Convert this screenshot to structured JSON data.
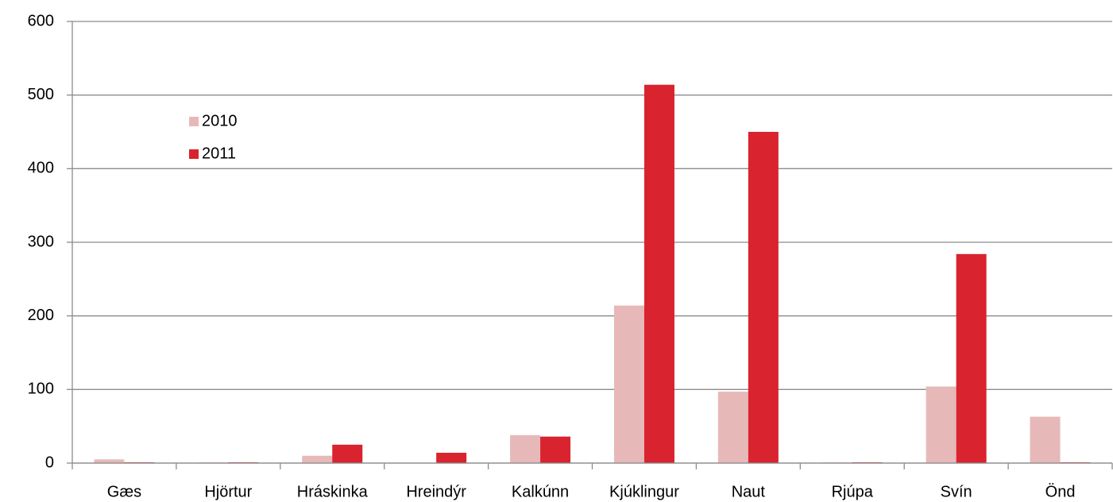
{
  "chart_data": {
    "type": "bar",
    "categories": [
      "Gæs",
      "Hjörtur",
      "Hráskinka",
      "Hreindýr",
      "Kalkúnn",
      "Kjúklingur",
      "Naut",
      "Rjúpa",
      "Svín",
      "Önd"
    ],
    "series": [
      {
        "name": "2010",
        "color": "#e6b9b8",
        "values": [
          5,
          1,
          10,
          0,
          38,
          214,
          97,
          1,
          104,
          63
        ]
      },
      {
        "name": "2011",
        "color": "#d9232e",
        "values": [
          1,
          1,
          25,
          14,
          36,
          514,
          450,
          1,
          284,
          1
        ]
      }
    ],
    "ylim": [
      0,
      600
    ],
    "yticks": [
      0,
      100,
      200,
      300,
      400,
      500,
      600
    ],
    "grid": true,
    "legend": "upper left"
  }
}
